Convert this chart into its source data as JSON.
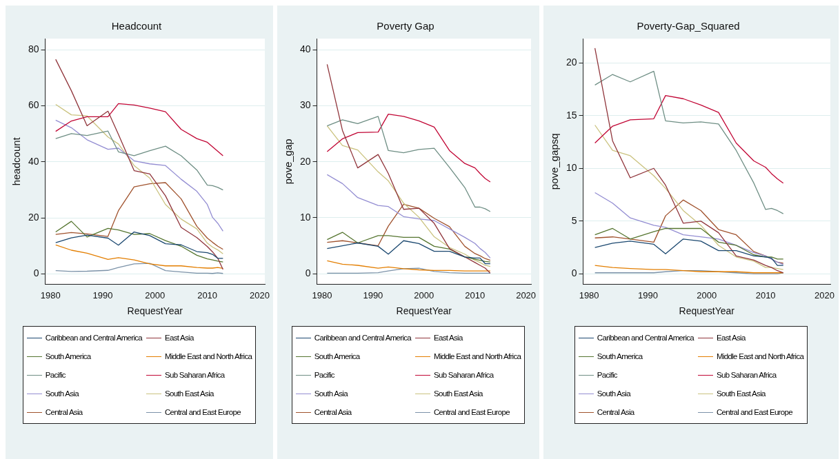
{
  "chart_data": [
    {
      "type": "line",
      "title": "Headcount",
      "xlabel": "RequestYear",
      "ylabel": "headcount",
      "x": [
        1981,
        1984,
        1987,
        1991,
        1993,
        1996,
        1999,
        2002,
        2005,
        2008,
        2010,
        2011,
        2012,
        2013
      ],
      "xlim": [
        1979,
        2021
      ],
      "xticks": [
        1980,
        1990,
        2000,
        2010,
        2020
      ],
      "ylim": [
        -3.7,
        84
      ],
      "yticks": [
        0,
        20,
        40,
        60,
        80
      ],
      "grid": "y",
      "legend": "bottom",
      "marker": "none",
      "series": [
        {
          "name": "Caribbean and Central America",
          "color": "#1a476f",
          "values": [
            11.2,
            12.9,
            13.9,
            12.8,
            10.3,
            15.0,
            13.7,
            10.8,
            10.4,
            8.0,
            7.6,
            7.0,
            5.6,
            5.6
          ]
        },
        {
          "name": "East Asia",
          "color": "#90353b",
          "values": [
            76.6,
            65.4,
            52.9,
            58.1,
            49.8,
            36.9,
            35.7,
            27.9,
            16.6,
            13.0,
            9.8,
            7.9,
            5.6,
            1.6
          ]
        },
        {
          "name": "South America",
          "color": "#55752f",
          "values": [
            15.0,
            18.8,
            13.2,
            16.3,
            15.7,
            14.1,
            14.4,
            11.9,
            9.9,
            6.7,
            5.4,
            5.0,
            4.6,
            4.3
          ]
        },
        {
          "name": "Middle East and North Africa",
          "color": "#e37e00",
          "values": [
            10.4,
            8.5,
            7.4,
            5.2,
            5.8,
            5.0,
            3.6,
            2.9,
            2.9,
            2.3,
            2.1,
            2.1,
            2.3,
            2.0
          ]
        },
        {
          "name": "Pacific",
          "color": "#6e8e84",
          "values": [
            48.3,
            50.1,
            49.4,
            51.0,
            43.6,
            42.2,
            44.0,
            45.6,
            42.2,
            37.1,
            31.7,
            31.5,
            30.9,
            30.0
          ]
        },
        {
          "name": "Sub Saharan Africa",
          "color": "#c10534",
          "values": [
            50.9,
            54.6,
            56.1,
            56.1,
            60.8,
            60.3,
            59.2,
            57.9,
            51.6,
            48.3,
            47.0,
            45.4,
            43.8,
            42.2
          ]
        },
        {
          "name": "South Asia",
          "color": "#938dd2",
          "values": [
            54.9,
            52.2,
            47.9,
            44.5,
            44.9,
            40.4,
            39.3,
            38.7,
            33.8,
            29.5,
            24.8,
            20.2,
            18.1,
            15.3
          ]
        },
        {
          "name": "South East Asia",
          "color": "#cac27e",
          "values": [
            60.5,
            56.8,
            56.4,
            48.9,
            46.4,
            38.7,
            34.2,
            24.8,
            19.6,
            16.1,
            11.0,
            9.6,
            8.6,
            7.2
          ]
        },
        {
          "name": "Central Asia",
          "color": "#a0522d",
          "values": [
            14.1,
            14.8,
            14.3,
            13.4,
            22.6,
            31.1,
            32.2,
            32.6,
            26.8,
            17.0,
            12.8,
            11.3,
            9.9,
            8.8
          ]
        },
        {
          "name": "Central and East Europe",
          "color": "#7b92a8",
          "values": [
            1.2,
            0.9,
            1.0,
            1.3,
            2.3,
            3.6,
            3.8,
            1.2,
            0.7,
            0.3,
            0.3,
            0.2,
            0.4,
            0.2
          ]
        }
      ]
    },
    {
      "type": "line",
      "title": "Poverty Gap",
      "xlabel": "RequestYear",
      "ylabel": "pove_gap",
      "x": [
        1981,
        1984,
        1987,
        1991,
        1993,
        1996,
        1999,
        2002,
        2005,
        2008,
        2010,
        2011,
        2012,
        2013
      ],
      "xlim": [
        1979,
        2021
      ],
      "xticks": [
        1980,
        1990,
        2000,
        2010,
        2020
      ],
      "ylim": [
        -1.9,
        42
      ],
      "yticks": [
        0,
        10,
        20,
        30,
        40
      ],
      "grid": "y",
      "legend": "bottom",
      "marker": "none",
      "series": [
        {
          "name": "Caribbean and Central America",
          "color": "#1a476f",
          "values": [
            4.5,
            5.0,
            5.5,
            4.9,
            3.5,
            5.9,
            5.4,
            4.0,
            4.0,
            3.0,
            2.8,
            2.8,
            1.8,
            1.8
          ]
        },
        {
          "name": "East Asia",
          "color": "#90353b",
          "values": [
            37.4,
            25.6,
            18.9,
            21.3,
            17.9,
            11.5,
            11.7,
            9.0,
            4.5,
            3.0,
            2.0,
            1.5,
            1.0,
            0.1
          ]
        },
        {
          "name": "South America",
          "color": "#55752f",
          "values": [
            6.1,
            7.4,
            5.5,
            6.8,
            6.8,
            6.5,
            6.5,
            4.9,
            4.4,
            3.0,
            2.6,
            2.4,
            2.2,
            2.1
          ]
        },
        {
          "name": "Middle East and North Africa",
          "color": "#e37e00",
          "values": [
            2.3,
            1.7,
            1.5,
            1.0,
            1.2,
            0.9,
            0.7,
            0.6,
            0.6,
            0.5,
            0.5,
            0.5,
            0.5,
            0.5
          ]
        },
        {
          "name": "Pacific",
          "color": "#6e8e84",
          "values": [
            26.4,
            27.5,
            26.8,
            28.1,
            22.0,
            21.6,
            22.2,
            22.4,
            19.0,
            15.4,
            11.9,
            11.9,
            11.6,
            11.1
          ]
        },
        {
          "name": "Sub Saharan Africa",
          "color": "#c10534",
          "values": [
            21.8,
            24.1,
            25.2,
            25.3,
            28.5,
            28.1,
            27.3,
            26.2,
            22.0,
            19.7,
            18.9,
            17.9,
            17.0,
            16.4
          ]
        },
        {
          "name": "South Asia",
          "color": "#938dd2",
          "values": [
            17.7,
            16.1,
            13.6,
            12.2,
            12.0,
            10.2,
            9.8,
            9.5,
            8.0,
            6.5,
            5.4,
            4.5,
            3.8,
            2.8
          ]
        },
        {
          "name": "South East Asia",
          "color": "#cac27e",
          "values": [
            26.4,
            22.9,
            22.1,
            18.2,
            16.6,
            12.6,
            10.1,
            6.6,
            4.7,
            3.5,
            2.4,
            2.0,
            1.5,
            1.3
          ]
        },
        {
          "name": "Central Asia",
          "color": "#a0522d",
          "values": [
            5.6,
            5.9,
            5.5,
            5.0,
            8.5,
            12.4,
            11.7,
            9.9,
            8.4,
            4.9,
            3.6,
            3.2,
            2.7,
            2.4
          ]
        },
        {
          "name": "Central and East Europe",
          "color": "#7b92a8",
          "values": [
            0.1,
            0.1,
            0.1,
            0.2,
            0.5,
            0.9,
            1.0,
            0.4,
            0.2,
            0.1,
            0.1,
            0.1,
            0.1,
            0.1
          ]
        }
      ]
    },
    {
      "type": "line",
      "title": "Poverty-Gap_Squared",
      "xlabel": "RequestYear",
      "ylabel": "pove_gapsq",
      "x": [
        1981,
        1984,
        1987,
        1991,
        1993,
        1996,
        1999,
        2002,
        2005,
        2008,
        2010,
        2011,
        2012,
        2013
      ],
      "xlim": [
        1979,
        2021
      ],
      "xticks": [
        1980,
        1990,
        2000,
        2010,
        2020
      ],
      "ylim": [
        -1,
        22.3
      ],
      "yticks": [
        0,
        5,
        10,
        15,
        20
      ],
      "grid": "y",
      "legend": "bottom",
      "marker": "none",
      "series": [
        {
          "name": "Caribbean and Central America",
          "color": "#1a476f",
          "values": [
            2.5,
            2.9,
            3.1,
            2.8,
            1.9,
            3.3,
            3.1,
            2.2,
            2.2,
            1.7,
            1.6,
            1.5,
            0.8,
            0.8
          ]
        },
        {
          "name": "East Asia",
          "color": "#90353b",
          "values": [
            21.4,
            12.6,
            9.1,
            10.0,
            8.4,
            4.8,
            5.0,
            3.9,
            1.7,
            1.3,
            0.8,
            0.6,
            0.3,
            0.1
          ]
        },
        {
          "name": "South America",
          "color": "#55752f",
          "values": [
            3.7,
            4.3,
            3.3,
            4.0,
            4.3,
            4.3,
            4.3,
            3.0,
            2.7,
            1.8,
            1.6,
            1.6,
            1.4,
            1.4
          ]
        },
        {
          "name": "Middle East and North Africa",
          "color": "#e37e00",
          "values": [
            0.8,
            0.6,
            0.5,
            0.4,
            0.4,
            0.3,
            0.2,
            0.2,
            0.2,
            0.1,
            0.1,
            0.1,
            0.1,
            0.1
          ]
        },
        {
          "name": "Pacific",
          "color": "#6e8e84",
          "values": [
            17.9,
            18.9,
            18.2,
            19.2,
            14.5,
            14.3,
            14.4,
            14.2,
            11.7,
            8.6,
            6.1,
            6.2,
            6.0,
            5.7
          ]
        },
        {
          "name": "Sub Saharan Africa",
          "color": "#c10534",
          "values": [
            12.4,
            14.0,
            14.6,
            14.7,
            16.9,
            16.6,
            16.0,
            15.3,
            12.4,
            10.7,
            10.1,
            9.5,
            9.0,
            8.6
          ]
        },
        {
          "name": "South Asia",
          "color": "#938dd2",
          "values": [
            7.7,
            6.7,
            5.3,
            4.6,
            4.4,
            3.7,
            3.5,
            3.3,
            2.7,
            2.0,
            1.7,
            1.4,
            1.1,
            0.9
          ]
        },
        {
          "name": "South East Asia",
          "color": "#cac27e",
          "values": [
            14.1,
            11.7,
            11.2,
            9.3,
            8.1,
            6.0,
            4.6,
            2.7,
            1.6,
            1.2,
            0.6,
            0.6,
            0.5,
            0.4
          ]
        },
        {
          "name": "Central Asia",
          "color": "#a0522d",
          "values": [
            3.4,
            3.5,
            3.3,
            3.0,
            5.5,
            7.0,
            6.0,
            4.2,
            3.7,
            2.1,
            1.7,
            1.4,
            1.1,
            1.0
          ]
        },
        {
          "name": "Central and East Europe",
          "color": "#7b92a8",
          "values": [
            0.1,
            0.1,
            0.1,
            0.1,
            0.2,
            0.3,
            0.3,
            0.2,
            0.1,
            0.0,
            0.0,
            0.0,
            0.0,
            0.1
          ]
        }
      ]
    }
  ]
}
